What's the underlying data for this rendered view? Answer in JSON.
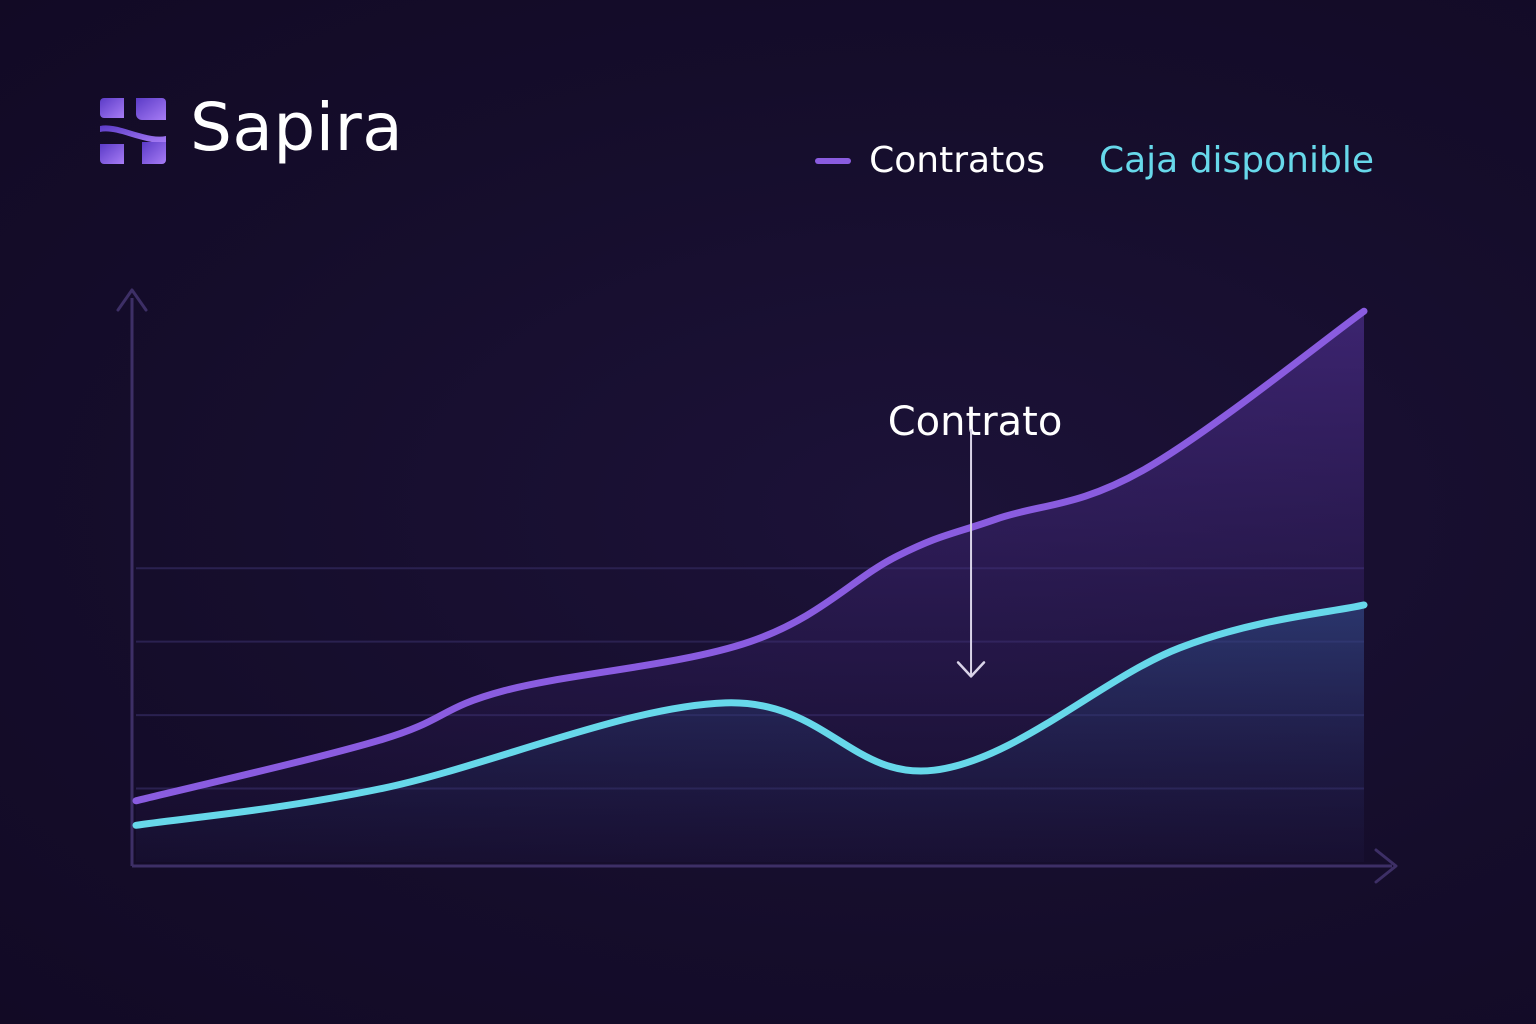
{
  "brand": {
    "name": "Sapira",
    "mark_colors": [
      "#6d4adb",
      "#9a6cf0"
    ]
  },
  "legend": [
    {
      "label": "Contratos",
      "color": "#8a5ce0",
      "swatch": true
    },
    {
      "label": "Caja disponible",
      "color": "#67d8ea",
      "swatch": false
    }
  ],
  "colors": {
    "background": "#150d2b",
    "axis": "#3d2f66",
    "grid": "#2a2150",
    "contratos": "#8a5ce0",
    "caja": "#67d8ea",
    "annotation": "#d9d4e8"
  },
  "chart_data": {
    "type": "line",
    "title": "",
    "xlabel": "",
    "ylabel": "",
    "xlim": [
      0,
      10
    ],
    "ylim": [
      0,
      10
    ],
    "grid": "horizontal",
    "series": [
      {
        "name": "Contratos",
        "x": [
          0,
          2,
          3,
          5,
          6.2,
          7,
          8.2,
          10
        ],
        "values": [
          1.0,
          2.0,
          2.8,
          3.6,
          5.0,
          5.6,
          6.4,
          9.0
        ],
        "area": true
      },
      {
        "name": "Caja disponible",
        "x": [
          0,
          2,
          4.8,
          6.5,
          8.5,
          10
        ],
        "values": [
          0.6,
          1.2,
          2.6,
          1.5,
          3.5,
          4.2
        ],
        "area": true
      }
    ],
    "gridlines_y": [
      1.2,
      2.4,
      3.6,
      4.8
    ],
    "annotations": [
      {
        "text": "Contrato",
        "x": 6.8,
        "y_from": 5.7,
        "y_to": 3.0
      }
    ]
  }
}
